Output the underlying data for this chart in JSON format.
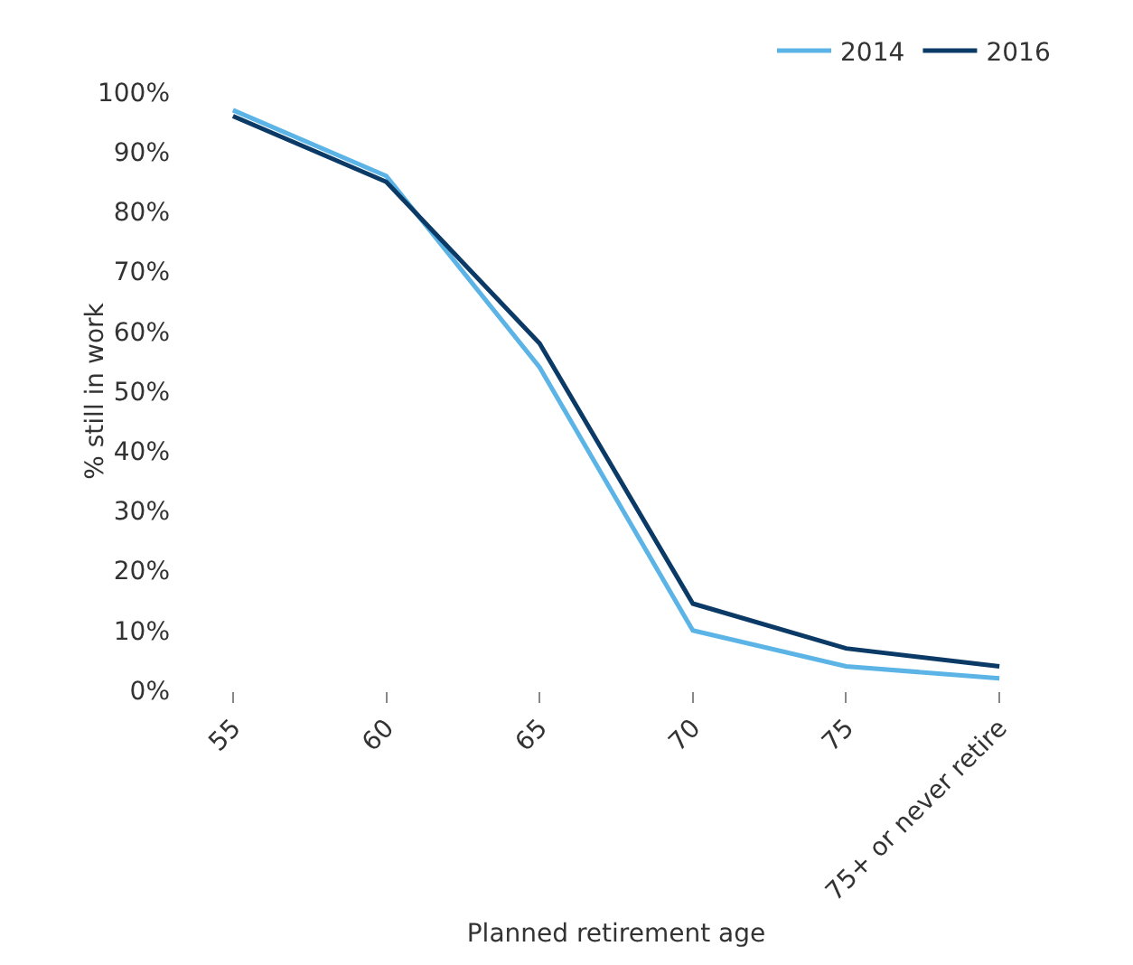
{
  "chart_data": {
    "type": "line",
    "xlabel": "Planned retirement age",
    "ylabel": "% still in work",
    "categories": [
      "55",
      "60",
      "65",
      "70",
      "75",
      "75+ or never retire"
    ],
    "series": [
      {
        "name": "2014",
        "color": "#5bb4e5",
        "values": [
          97,
          86,
          54,
          10,
          4,
          2
        ]
      },
      {
        "name": "2016",
        "color": "#0b3a66",
        "values": [
          96,
          85,
          58,
          14.5,
          7,
          4
        ]
      }
    ],
    "ylim": [
      0,
      100
    ],
    "yticks": [
      {
        "value": 0,
        "label": "0%"
      },
      {
        "value": 10,
        "label": "10%"
      },
      {
        "value": 20,
        "label": "20%"
      },
      {
        "value": 30,
        "label": "30%"
      },
      {
        "value": 40,
        "label": "40%"
      },
      {
        "value": 50,
        "label": "50%"
      },
      {
        "value": 60,
        "label": "60%"
      },
      {
        "value": 70,
        "label": "70%"
      },
      {
        "value": 80,
        "label": "80%"
      },
      {
        "value": 90,
        "label": "90%"
      },
      {
        "value": 100,
        "label": "100%"
      }
    ],
    "grid": false,
    "legend": "top right",
    "marker": "none",
    "line_style": "solid"
  }
}
